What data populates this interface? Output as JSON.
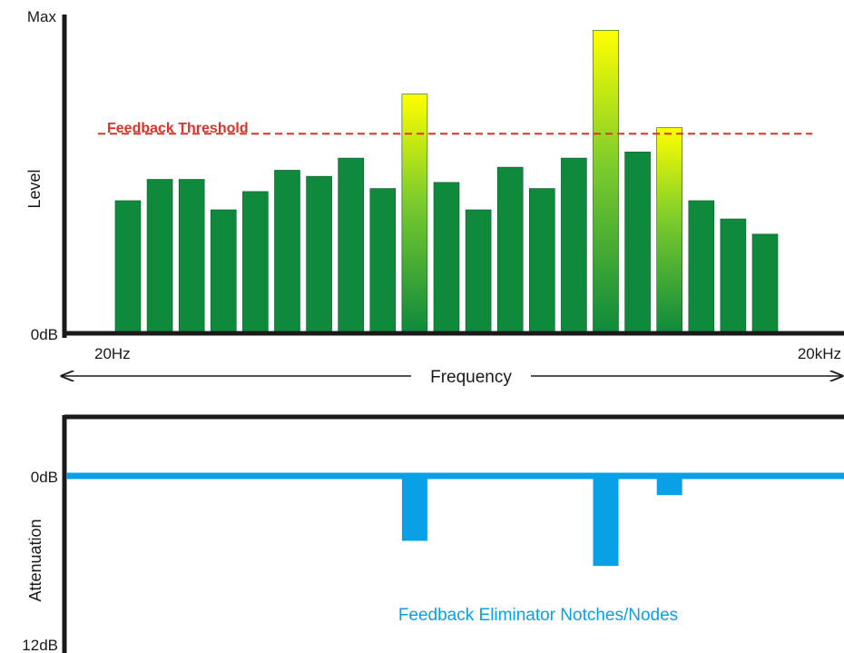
{
  "chart_data": [
    {
      "type": "bar",
      "y_max_label": "Max",
      "y_min_label": "0dB",
      "ylabel": "Level",
      "x_min_label": "20Hz",
      "x_max_label": "20kHz",
      "xlabel": "Frequency",
      "ylim": [
        0,
        100
      ],
      "threshold": {
        "label": "Feedback Threshold",
        "value": 65,
        "color": "#d9342b"
      },
      "values": [
        43,
        50,
        50,
        40,
        46,
        53,
        51,
        57,
        47,
        78,
        49,
        40,
        54,
        47,
        57,
        99,
        59,
        67,
        43,
        37,
        32
      ],
      "exceeds_threshold": [
        false,
        false,
        false,
        false,
        false,
        false,
        false,
        false,
        false,
        true,
        false,
        false,
        false,
        false,
        false,
        true,
        false,
        true,
        false,
        false,
        false
      ],
      "colors": {
        "bar": "#0f8a3c",
        "bar_top": "#ffff00",
        "axis": "#1a1a1a"
      }
    },
    {
      "type": "bar",
      "ylabel": "Attenuation",
      "y_top_label": "0dB",
      "y_bottom_label": "12dB",
      "ylim": [
        0,
        12
      ],
      "annotation": "Feedback Eliminator Notches/Nodes",
      "notches": [
        {
          "bar_index": 9,
          "depth": 4.4
        },
        {
          "bar_index": 15,
          "depth": 6.1
        },
        {
          "bar_index": 17,
          "depth": 1.3
        }
      ],
      "colors": {
        "notch": "#0aa0e6",
        "axis": "#1a1a1a"
      }
    }
  ]
}
